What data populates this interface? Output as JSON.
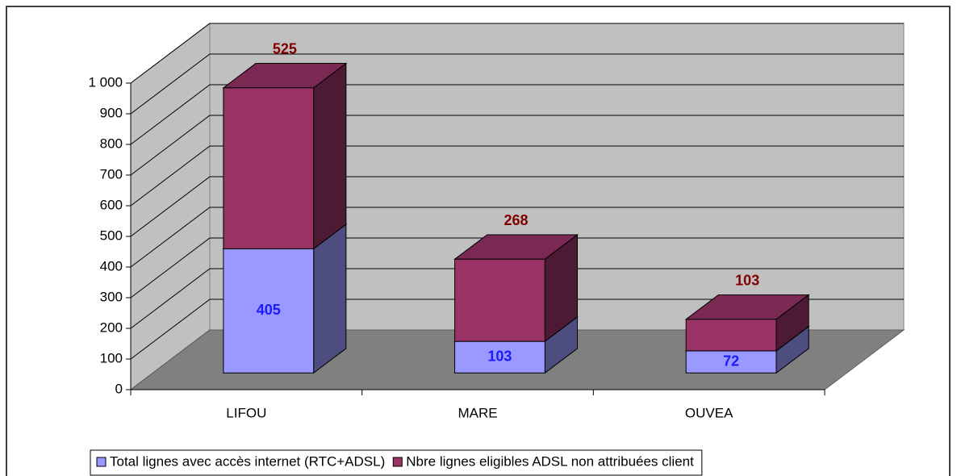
{
  "chart_data": {
    "type": "bar3d_stacked",
    "categories": [
      "LIFOU",
      "MARE",
      "OUVEA"
    ],
    "series": [
      {
        "name": "Total lignes avec accès internet (RTC+ADSL)",
        "color": "#9999ff",
        "label_color": "#1a1aff",
        "values": [
          405,
          103,
          72
        ]
      },
      {
        "name": "Nbre lignes eligibles ADSL non attribuées client",
        "color": "#993366",
        "label_color": "#800000",
        "values": [
          525,
          268,
          103
        ]
      }
    ],
    "ylim": [
      0,
      1000
    ],
    "yticks": [
      0,
      100,
      200,
      300,
      400,
      500,
      600,
      700,
      800,
      900,
      {
        "value": 1000,
        "label": "1 000"
      }
    ],
    "grid": true,
    "legend": "bottom"
  }
}
